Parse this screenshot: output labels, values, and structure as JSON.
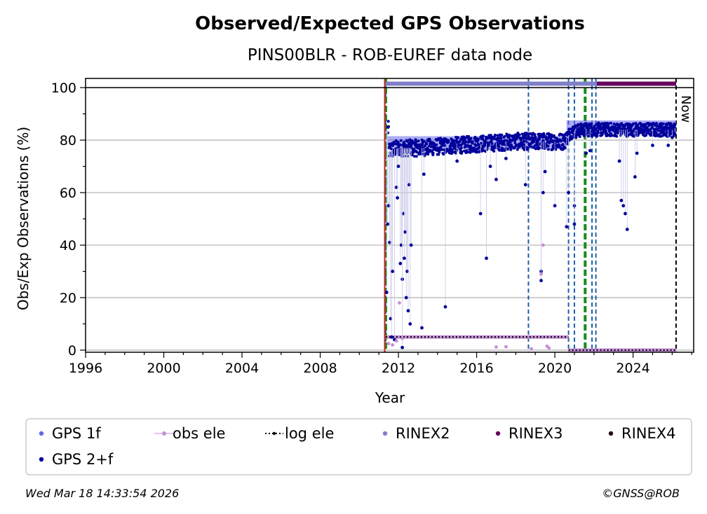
{
  "chart_data": {
    "type": "scatter",
    "title": "Observed/Expected GPS Observations",
    "subtitle": "PINS00BLR - ROB-EUREF data node",
    "xlabel": "Year",
    "ylabel": "Obs/Exp Observations (%)",
    "xlim": [
      1996,
      2027.1
    ],
    "ylim": [
      -0.8,
      103.5
    ],
    "x_ticks": [
      1996,
      2000,
      2004,
      2008,
      2012,
      2016,
      2020,
      2024
    ],
    "y_ticks": [
      0,
      20,
      40,
      60,
      80,
      100
    ],
    "grid": "horizontal",
    "legend_position": "bottom",
    "now_label": "Now",
    "now_year": 2026.2,
    "legend": [
      {
        "label": "GPS 1f",
        "color": "#6666ee",
        "kind": "dot"
      },
      {
        "label": "obs ele",
        "color": "#c58fd6",
        "kind": "line-dot"
      },
      {
        "label": "log ele",
        "color": "#000000",
        "kind": "dotted"
      },
      {
        "label": "RINEX2",
        "color": "#8080c8",
        "kind": "dot"
      },
      {
        "label": "RINEX3",
        "color": "#66005e",
        "kind": "dot"
      },
      {
        "label": "RINEX4",
        "color": "#2a0a20",
        "kind": "dot"
      },
      {
        "label": "GPS 2+f",
        "color": "#00009a",
        "kind": "dot"
      }
    ],
    "colors": {
      "gps1f": "#6666ee",
      "gps2f": "#00009a",
      "obs_ele": "#c58fd6",
      "log_ele": "#000000",
      "rinex2": "#8080c8",
      "rinex3": "#66005e",
      "blue_event": "#1f5fa8",
      "green_event": "#1a8a1a",
      "red_event": "#cc2222",
      "grid": "#b0b0b0"
    },
    "rinex2_bar": {
      "x0": 2011.35,
      "x1": 2022.15,
      "y": 101.5
    },
    "rinex3_bar": {
      "x0": 2022.15,
      "x1": 2026.2,
      "y": 101.5
    },
    "blue_dashed_events": [
      2011.35,
      2018.65,
      2020.7,
      2021.0,
      2021.9,
      2022.1
    ],
    "green_dashed_events": [
      2011.35,
      2021.55
    ],
    "red_line_event": 2011.3,
    "log_ele_segments": [
      {
        "x0": 2011.35,
        "x1": 2020.7,
        "y": 5
      },
      {
        "x0": 2020.7,
        "x1": 2026.2,
        "y": 0
      }
    ],
    "gps_1f_envelope": [
      {
        "x0": 2011.4,
        "x1": 2020.6,
        "y": 79
      },
      {
        "x0": 2020.6,
        "x1": 2026.2,
        "y": 85
      }
    ],
    "gps_2f_baseline": [
      {
        "x": 2011.5,
        "y": 76
      },
      {
        "x": 2012.0,
        "y": 77
      },
      {
        "x": 2013.0,
        "y": 77
      },
      {
        "x": 2014.0,
        "y": 77.5
      },
      {
        "x": 2015.0,
        "y": 78
      },
      {
        "x": 2016.0,
        "y": 78.5
      },
      {
        "x": 2017.0,
        "y": 79
      },
      {
        "x": 2018.0,
        "y": 79.5
      },
      {
        "x": 2019.0,
        "y": 79.5
      },
      {
        "x": 2020.5,
        "y": 79.5
      },
      {
        "x": 2020.8,
        "y": 83
      },
      {
        "x": 2021.5,
        "y": 84
      },
      {
        "x": 2022.5,
        "y": 84
      },
      {
        "x": 2024.0,
        "y": 84
      },
      {
        "x": 2026.1,
        "y": 84
      }
    ],
    "gps_2f_outliers": [
      [
        2011.4,
        22
      ],
      [
        2011.45,
        48
      ],
      [
        2011.5,
        55
      ],
      [
        2011.55,
        41
      ],
      [
        2011.6,
        12
      ],
      [
        2011.65,
        5
      ],
      [
        2011.7,
        30
      ],
      [
        2011.8,
        4
      ],
      [
        2011.9,
        62
      ],
      [
        2011.95,
        58
      ],
      [
        2012.0,
        70
      ],
      [
        2012.1,
        33
      ],
      [
        2012.15,
        40
      ],
      [
        2012.2,
        27
      ],
      [
        2012.25,
        52
      ],
      [
        2012.3,
        35
      ],
      [
        2012.35,
        45
      ],
      [
        2012.4,
        20
      ],
      [
        2012.45,
        30
      ],
      [
        2012.5,
        15
      ],
      [
        2012.55,
        63
      ],
      [
        2012.6,
        10
      ],
      [
        2012.65,
        40
      ],
      [
        2012.2,
        1
      ],
      [
        2013.2,
        8.5
      ],
      [
        2013.3,
        67
      ],
      [
        2014.4,
        16.5
      ],
      [
        2015.0,
        72
      ],
      [
        2016.2,
        52
      ],
      [
        2016.5,
        35
      ],
      [
        2016.7,
        70
      ],
      [
        2017.0,
        65
      ],
      [
        2017.5,
        73
      ],
      [
        2018.5,
        63
      ],
      [
        2019.3,
        30
      ],
      [
        2019.3,
        26.5
      ],
      [
        2019.4,
        60
      ],
      [
        2019.5,
        68
      ],
      [
        2020.0,
        55
      ],
      [
        2020.6,
        47
      ],
      [
        2020.7,
        60
      ],
      [
        2021.0,
        55
      ],
      [
        2021.0,
        48
      ],
      [
        2021.6,
        75
      ],
      [
        2021.8,
        76
      ],
      [
        2023.3,
        72
      ],
      [
        2023.4,
        57
      ],
      [
        2023.5,
        55
      ],
      [
        2023.6,
        52
      ],
      [
        2023.7,
        46
      ],
      [
        2024.1,
        66
      ],
      [
        2024.2,
        75
      ],
      [
        2025.0,
        78
      ],
      [
        2025.8,
        78
      ],
      [
        2026.0,
        81
      ]
    ],
    "obs_ele_points": [
      [
        2011.5,
        2.5
      ],
      [
        2011.7,
        2
      ],
      [
        2011.9,
        3.5
      ],
      [
        2012.05,
        18
      ],
      [
        2012.2,
        4.5
      ],
      [
        2017.0,
        1.2
      ],
      [
        2017.5,
        1.3
      ],
      [
        2018.8,
        0.5
      ],
      [
        2019.4,
        40
      ],
      [
        2019.3,
        29
      ],
      [
        2019.6,
        1.5
      ],
      [
        2019.7,
        0.8
      ]
    ],
    "footer_left": "Wed Mar 18 14:33:54 2026",
    "footer_right": "©GNSS@ROB"
  }
}
